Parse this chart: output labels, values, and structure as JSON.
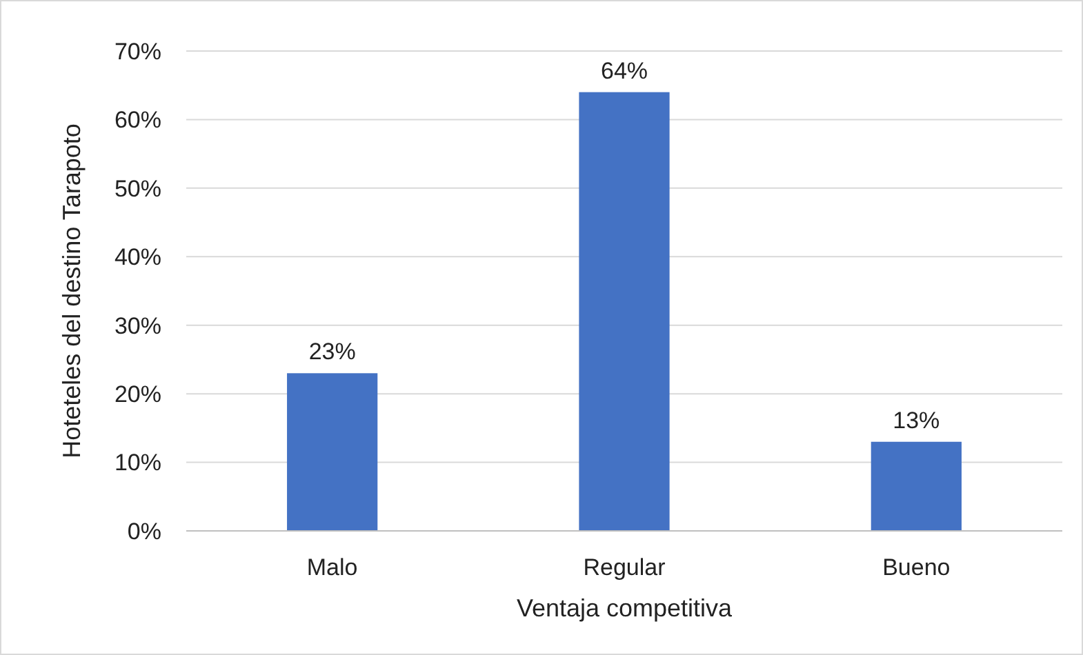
{
  "chart_data": {
    "type": "bar",
    "xlabel": "Ventaja competitiva",
    "ylabel": "Hoteteles del destino Tarapoto",
    "categories": [
      "Malo",
      "Regular",
      "Bueno"
    ],
    "values": [
      23,
      64,
      13
    ],
    "color": "#4472c4",
    "value_labels": [
      "23%",
      "64%",
      "13%"
    ],
    "ylim": [
      0,
      70
    ],
    "yticks": [
      {
        "value": 0,
        "label": "0%"
      },
      {
        "value": 10,
        "label": "10%"
      },
      {
        "value": 20,
        "label": "20%"
      },
      {
        "value": 30,
        "label": "30%"
      },
      {
        "value": 40,
        "label": "40%"
      },
      {
        "value": 50,
        "label": "50%"
      },
      {
        "value": 60,
        "label": "60%"
      },
      {
        "value": 70,
        "label": "70%"
      }
    ],
    "grid": "y"
  }
}
